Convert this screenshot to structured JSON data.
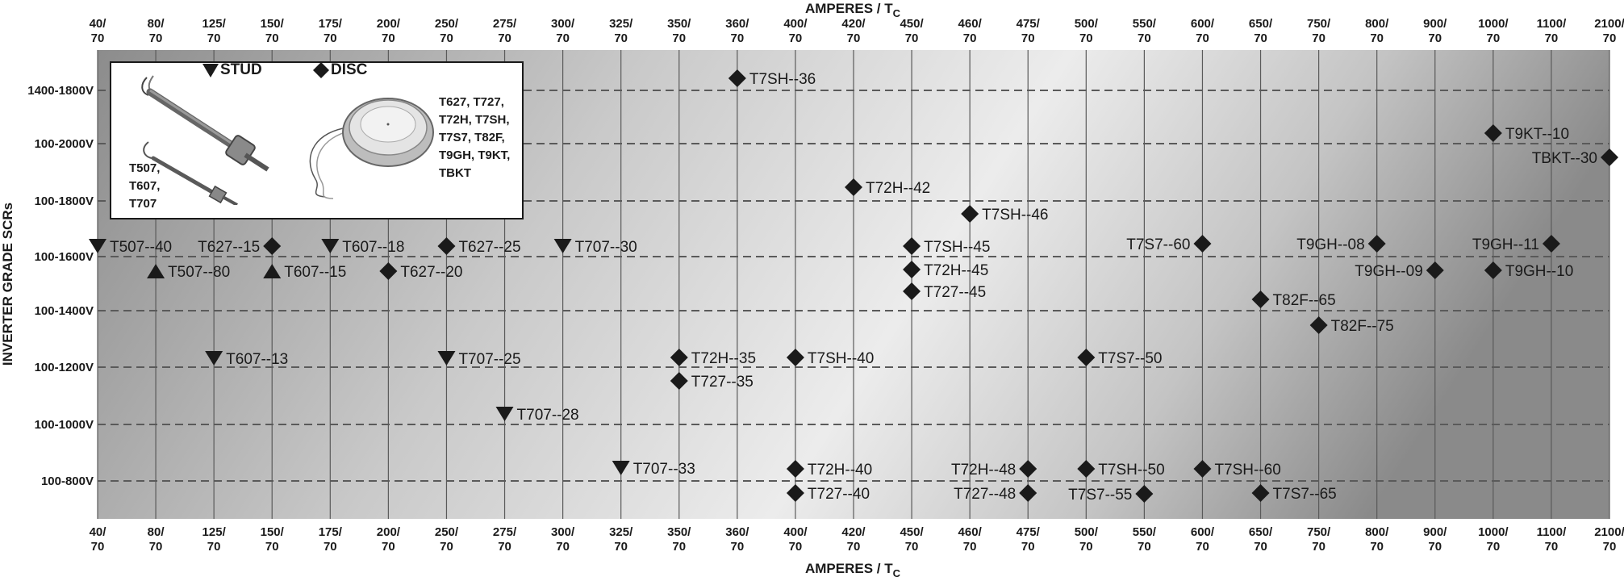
{
  "chart_data": {
    "type": "scatter",
    "xlabel": "AMPERES / T",
    "xlabel_sub": "C",
    "ylabel": "INVERTER GRADE SCRs",
    "x_categories": [
      {
        "top": "40/",
        "bottom": "70"
      },
      {
        "top": "80/",
        "bottom": "70"
      },
      {
        "top": "125/",
        "bottom": "70"
      },
      {
        "top": "150/",
        "bottom": "70"
      },
      {
        "top": "175/",
        "bottom": "70"
      },
      {
        "top": "200/",
        "bottom": "70"
      },
      {
        "top": "250/",
        "bottom": "70"
      },
      {
        "top": "275/",
        "bottom": "70"
      },
      {
        "top": "300/",
        "bottom": "70"
      },
      {
        "top": "325/",
        "bottom": "70"
      },
      {
        "top": "350/",
        "bottom": "70"
      },
      {
        "top": "360/",
        "bottom": "70"
      },
      {
        "top": "400/",
        "bottom": "70"
      },
      {
        "top": "420/",
        "bottom": "70"
      },
      {
        "top": "450/",
        "bottom": "70"
      },
      {
        "top": "460/",
        "bottom": "70"
      },
      {
        "top": "475/",
        "bottom": "70"
      },
      {
        "top": "500/",
        "bottom": "70"
      },
      {
        "top": "550/",
        "bottom": "70"
      },
      {
        "top": "600/",
        "bottom": "70"
      },
      {
        "top": "650/",
        "bottom": "70"
      },
      {
        "top": "750/",
        "bottom": "70"
      },
      {
        "top": "800/",
        "bottom": "70"
      },
      {
        "top": "900/",
        "bottom": "70"
      },
      {
        "top": "1000/",
        "bottom": "70"
      },
      {
        "top": "1100/",
        "bottom": "70"
      },
      {
        "top": "2100/",
        "bottom": "70"
      }
    ],
    "y_categories": [
      "1400-1800V",
      "100-2000V",
      "100-1800V",
      "100-1600V",
      "100-1400V",
      "100-1200V",
      "100-1000V",
      "100-800V"
    ],
    "legend": {
      "stud": "STUD",
      "disc": "DISC"
    },
    "points": [
      {
        "label": "T7SH--36",
        "x": "360/70",
        "y": "1400-1800V",
        "marker": "disc",
        "side": "right"
      },
      {
        "label": "T9KT--10",
        "x": "1000/70",
        "y": "100-2000V",
        "marker": "disc",
        "side": "right"
      },
      {
        "label": "TBKT--30",
        "x": "2100/70",
        "y": "100-2000V",
        "marker": "disc",
        "side": "left"
      },
      {
        "label": "T72H--42",
        "x": "420/70",
        "y": "100-1800V",
        "marker": "disc",
        "side": "right"
      },
      {
        "label": "T7SH--46",
        "x": "460/70",
        "y": "100-1800V",
        "marker": "disc",
        "side": "right"
      },
      {
        "label": "T507--40",
        "x": "40/70",
        "y": "100-1600V",
        "marker": "stud-down",
        "side": "right"
      },
      {
        "label": "T507--80",
        "x": "80/70",
        "y": "100-1600V",
        "marker": "stud-up",
        "side": "right"
      },
      {
        "label": "T627--15",
        "x": "150/70",
        "y": "100-1600V",
        "marker": "disc",
        "side": "left"
      },
      {
        "label": "T607--15",
        "x": "150/70",
        "y": "100-1600V",
        "marker": "stud-up",
        "side": "right"
      },
      {
        "label": "T607--18",
        "x": "175/70",
        "y": "100-1600V",
        "marker": "stud-down",
        "side": "right"
      },
      {
        "label": "T627--20",
        "x": "200/70",
        "y": "100-1600V",
        "marker": "disc",
        "side": "right"
      },
      {
        "label": "T627--25",
        "x": "250/70",
        "y": "100-1600V",
        "marker": "disc",
        "side": "right"
      },
      {
        "label": "T707--30",
        "x": "300/70",
        "y": "100-1600V",
        "marker": "stud-down",
        "side": "right"
      },
      {
        "label": "T7SH--45",
        "x": "450/70",
        "y": "100-1600V",
        "marker": "disc",
        "side": "right"
      },
      {
        "label": "T72H--45",
        "x": "450/70",
        "y": "100-1600V",
        "marker": "disc",
        "side": "right"
      },
      {
        "label": "T727--45",
        "x": "450/70",
        "y": "100-1600V",
        "marker": "disc",
        "side": "right"
      },
      {
        "label": "T7S7--60",
        "x": "600/70",
        "y": "100-1600V",
        "marker": "disc",
        "side": "left"
      },
      {
        "label": "T9GH--08",
        "x": "800/70",
        "y": "100-1600V",
        "marker": "disc",
        "side": "left"
      },
      {
        "label": "T9GH--09",
        "x": "900/70",
        "y": "100-1600V",
        "marker": "disc",
        "side": "left"
      },
      {
        "label": "T9GH--11",
        "x": "1100/70",
        "y": "100-1600V",
        "marker": "disc",
        "side": "left"
      },
      {
        "label": "T9GH--10",
        "x": "1000/70",
        "y": "100-1600V",
        "marker": "disc",
        "side": "right"
      },
      {
        "label": "T82F--65",
        "x": "650/70",
        "y": "100-1400V",
        "marker": "disc",
        "side": "right"
      },
      {
        "label": "T82F--75",
        "x": "750/70",
        "y": "100-1400V",
        "marker": "disc",
        "side": "right"
      },
      {
        "label": "T607--13",
        "x": "125/70",
        "y": "100-1200V",
        "marker": "stud-down",
        "side": "right"
      },
      {
        "label": "T707--25",
        "x": "250/70",
        "y": "100-1200V",
        "marker": "stud-down",
        "side": "right"
      },
      {
        "label": "T72H--35",
        "x": "350/70",
        "y": "100-1200V",
        "marker": "disc",
        "side": "right"
      },
      {
        "label": "T727--35",
        "x": "350/70",
        "y": "100-1200V",
        "marker": "disc",
        "side": "right"
      },
      {
        "label": "T7SH--40",
        "x": "400/70",
        "y": "100-1200V",
        "marker": "disc",
        "side": "right"
      },
      {
        "label": "T7S7--50",
        "x": "500/70",
        "y": "100-1200V",
        "marker": "disc",
        "side": "right"
      },
      {
        "label": "T707--28",
        "x": "275/70",
        "y": "100-1000V",
        "marker": "stud-down",
        "side": "right"
      },
      {
        "label": "T707--33",
        "x": "325/70",
        "y": "100-800V",
        "marker": "stud-down",
        "side": "right"
      },
      {
        "label": "T72H--40",
        "x": "400/70",
        "y": "100-800V",
        "marker": "disc",
        "side": "right"
      },
      {
        "label": "T727--40",
        "x": "400/70",
        "y": "100-800V",
        "marker": "disc",
        "side": "right"
      },
      {
        "label": "T72H--48",
        "x": "475/70",
        "y": "100-800V",
        "marker": "disc",
        "side": "left"
      },
      {
        "label": "T727--48",
        "x": "475/70",
        "y": "100-800V",
        "marker": "disc",
        "side": "left"
      },
      {
        "label": "T7SH--50",
        "x": "500/70",
        "y": "100-800V",
        "marker": "disc",
        "side": "right"
      },
      {
        "label": "T7S7--55",
        "x": "550/70",
        "y": "100-800V",
        "marker": "disc",
        "side": "left"
      },
      {
        "label": "T7SH--60",
        "x": "600/70",
        "y": "100-800V",
        "marker": "disc",
        "side": "right"
      },
      {
        "label": "T7S7--65",
        "x": "650/70",
        "y": "100-800V",
        "marker": "disc",
        "side": "right"
      }
    ],
    "grid": true
  },
  "legend_box": {
    "stud_label": "STUD",
    "disc_label": "DISC",
    "stud_models": "T507,\nT607,\nT707",
    "disc_models": "T627, T727,\nT72H, T7SH,\nT7S7,  T82F,\nT9GH, T9KT,\nTBKT"
  },
  "colors": {
    "plot_dark": "#8e8e8e",
    "plot_light": "#ededed",
    "marker": "#1a1a1a",
    "grid_v": "#5a5a5a",
    "grid_h": "#5a5a5a"
  }
}
